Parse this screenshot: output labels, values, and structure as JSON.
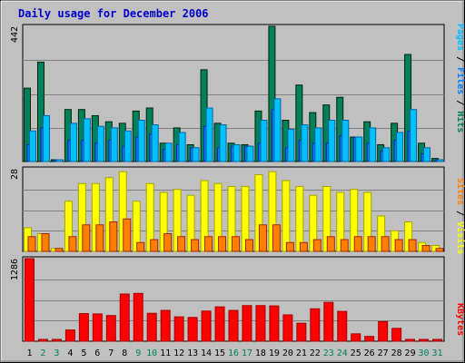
{
  "title": "Daily usage for December 2006",
  "colors": {
    "background": "#c0c0c0",
    "title": "#0000cc",
    "hits": "#00805c",
    "files": "#0080ff",
    "pages": "#00c0ff",
    "visits": "#ffff00",
    "sites": "#ff8000",
    "kbytes": "#ff0000",
    "day_weekday": "#000000",
    "day_weekend": "#00805c"
  },
  "legends": {
    "top": {
      "pages": "Pages",
      "files": "Files",
      "hits": "Hits",
      "sep": " / "
    },
    "middle": {
      "sites": "Sites",
      "visits": "Visits",
      "sep": " / "
    },
    "bottom": {
      "kbytes": "KBytes"
    }
  },
  "chart_data": {
    "type": "bar",
    "title": "Daily usage for December 2006",
    "days": [
      1,
      2,
      3,
      4,
      5,
      6,
      7,
      8,
      9,
      10,
      11,
      12,
      13,
      14,
      15,
      16,
      17,
      18,
      19,
      20,
      21,
      22,
      23,
      24,
      25,
      26,
      27,
      28,
      29,
      30,
      31
    ],
    "weekend_days": [
      2,
      3,
      9,
      10,
      16,
      17,
      23,
      24,
      30,
      31
    ],
    "panels": [
      {
        "name": "hits-files-pages",
        "ymax_label": "442",
        "ylim": [
          0,
          442
        ],
        "series": [
          {
            "name": "Hits",
            "values": [
              240,
              325,
              5,
              170,
              170,
              150,
              130,
              125,
              165,
              175,
              60,
              110,
              55,
              300,
              125,
              60,
              55,
              165,
              442,
              135,
              250,
              160,
              185,
              210,
              80,
              130,
              55,
              125,
              350,
              60,
              10
            ]
          },
          {
            "name": "Files",
            "values": [
              55,
              110,
              5,
              70,
              70,
              60,
              70,
              50,
              80,
              90,
              40,
              55,
              45,
              115,
              45,
              50,
              50,
              60,
              170,
              45,
              70,
              60,
              60,
              85,
              80,
              60,
              35,
              70,
              100,
              25,
              5
            ]
          },
          {
            "name": "Pages",
            "values": [
              100,
              150,
              5,
              125,
              140,
              115,
              110,
              100,
              135,
              120,
              60,
              95,
              45,
              175,
              120,
              55,
              50,
              135,
              205,
              105,
              120,
              110,
              135,
              135,
              80,
              110,
              45,
              95,
              170,
              45,
              5
            ]
          }
        ]
      },
      {
        "name": "visits-sites",
        "ymax_label": "28",
        "ylim": [
          0,
          28
        ],
        "series": [
          {
            "name": "Visits",
            "values": [
              8,
              6,
              1,
              17,
              23,
              23,
              25,
              27,
              17,
              23,
              20,
              21,
              19,
              24,
              23,
              22,
              22,
              26,
              27,
              24,
              22,
              19,
              22,
              20,
              21,
              20,
              12,
              7,
              10,
              3,
              2
            ]
          },
          {
            "name": "Sites",
            "values": [
              5,
              6,
              1,
              5,
              9,
              9,
              10,
              11,
              3,
              4,
              6,
              5,
              4,
              5,
              5,
              5,
              4,
              9,
              9,
              3,
              3,
              4,
              5,
              4,
              5,
              5,
              5,
              4,
              4,
              2,
              1
            ]
          }
        ]
      },
      {
        "name": "kbytes",
        "ymax_label": "1286",
        "ylim": [
          0,
          1286
        ],
        "series": [
          {
            "name": "KBytes",
            "values": [
              1286,
              5,
              5,
              175,
              430,
              425,
              400,
              735,
              745,
              435,
              480,
              380,
              370,
              470,
              535,
              480,
              555,
              555,
              550,
              410,
              280,
              505,
              605,
              465,
              115,
              75,
              305,
              200,
              5,
              5,
              5
            ]
          }
        ]
      }
    ]
  }
}
